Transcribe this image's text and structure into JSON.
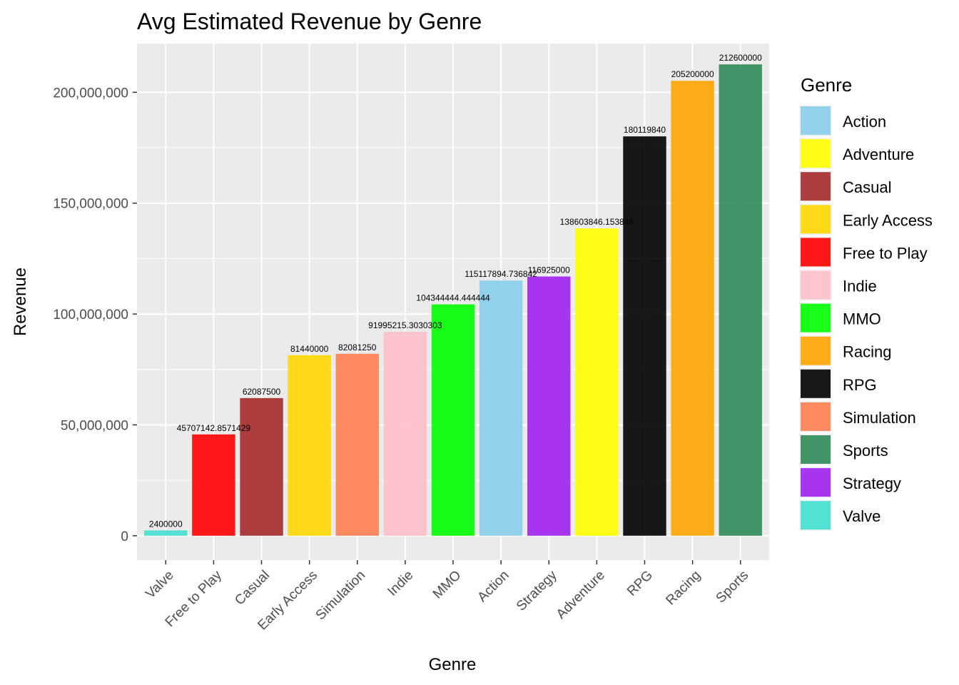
{
  "chart_data": {
    "type": "bar",
    "title": "Avg Estimated Revenue by Genre",
    "xlabel": "Genre",
    "ylabel": "Revenue",
    "ylim": [
      -11000000,
      222000000
    ],
    "yticks": [
      0,
      50000000,
      100000000,
      150000000,
      200000000
    ],
    "ytick_labels": [
      "0",
      "50,000,000",
      "100,000,000",
      "150,000,000",
      "200,000,000"
    ],
    "grid": true,
    "legend_position": "right",
    "legend_title": "Genre",
    "categories": [
      "Valve",
      "Free to Play",
      "Casual",
      "Early Access",
      "Simulation",
      "Indie",
      "MMO",
      "Action",
      "Strategy",
      "Adventure",
      "RPG",
      "Racing",
      "Sports"
    ],
    "values": [
      2400000,
      45707142.8571429,
      62087500,
      81440000,
      82081250,
      91995215.3030303,
      104344444.444444,
      115117894.736842,
      116925000,
      138603846.153846,
      180119840,
      205200000,
      212600000
    ],
    "value_labels": [
      "2400000",
      "45707142.8571429",
      "62087500",
      "81440000",
      "82081250",
      "91995215.3030303",
      "104344444.444444",
      "115117894.736842",
      "116925000",
      "138603846.153846",
      "180119840",
      "205200000",
      "212600000"
    ],
    "legend": [
      {
        "name": "Action",
        "color": "#87ceeb"
      },
      {
        "name": "Adventure",
        "color": "#ffff00"
      },
      {
        "name": "Casual",
        "color": "#a52a2a"
      },
      {
        "name": "Early Access",
        "color": "#ffd700"
      },
      {
        "name": "Free to Play",
        "color": "#ff0000"
      },
      {
        "name": "Indie",
        "color": "#ffc0cb"
      },
      {
        "name": "MMO",
        "color": "#00ff00"
      },
      {
        "name": "Racing",
        "color": "#ffa500"
      },
      {
        "name": "RPG",
        "color": "#000000"
      },
      {
        "name": "Simulation",
        "color": "#ff7f50"
      },
      {
        "name": "Sports",
        "color": "#2e8b57"
      },
      {
        "name": "Strategy",
        "color": "#a020f0"
      },
      {
        "name": "Valve",
        "color": "#40e0d0"
      }
    ],
    "bar_opacity": 0.9
  }
}
